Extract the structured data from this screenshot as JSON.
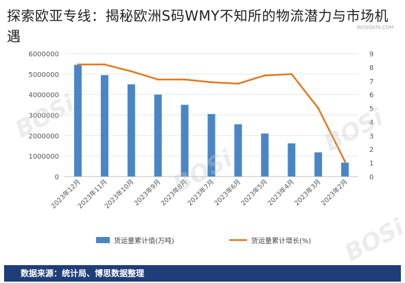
{
  "headline": "探索欧亚专线：揭秘欧洲S码WMY不知所的物流潜力与市场机遇",
  "watermark_text": "BOSi",
  "watermark_site": "BOSIDATA.COM",
  "footer": {
    "source_text": "数据来源：统计局、博思数据整理",
    "bg_color": "#1f3d78"
  },
  "chart_data": {
    "type": "bar+line",
    "title": "",
    "categories": [
      "2023年12月",
      "2023年11月",
      "2023年10月",
      "2023年9月",
      "2023年8月",
      "2023年7月",
      "2023年6月",
      "2023年5月",
      "2023年4月",
      "2023年3月",
      "2023年2月"
    ],
    "y_left": {
      "ylim": [
        0,
        6000000
      ],
      "ticks": [
        "0",
        "1000000",
        "2000000",
        "3000000",
        "4000000",
        "5000000",
        "6000000"
      ]
    },
    "y_right": {
      "ylim": [
        0,
        9
      ],
      "ticks": [
        "0",
        "1",
        "2",
        "3",
        "4",
        "5",
        "6",
        "7",
        "8",
        "9"
      ]
    },
    "series": [
      {
        "name": "货运量累计值(万吨)",
        "type": "bar",
        "axis": "left",
        "color": "#4a86c5",
        "values": [
          5450000,
          4950000,
          4500000,
          4000000,
          3500000,
          3050000,
          2550000,
          2100000,
          1620000,
          1180000,
          680000
        ]
      },
      {
        "name": "货运量累计增长(%)",
        "type": "line",
        "axis": "right",
        "color": "#e07a22",
        "values": [
          8.2,
          8.2,
          7.7,
          7.1,
          7.1,
          6.9,
          6.8,
          7.4,
          7.5,
          5.0,
          1.1
        ]
      }
    ],
    "legend_position": "bottom"
  }
}
